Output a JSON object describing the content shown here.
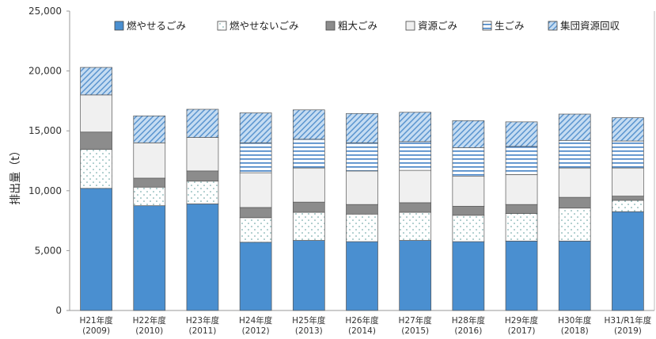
{
  "chart_data": {
    "type": "bar",
    "stacked": true,
    "ylabel": "排出量（t）",
    "ylim": [
      0,
      25000
    ],
    "yticks": [
      "0",
      "5,000",
      "10,000",
      "15,000",
      "20,000",
      "25,000"
    ],
    "ytick_values": [
      0,
      5000,
      10000,
      15000,
      20000,
      25000
    ],
    "grid": false,
    "legend_position": "top",
    "categories": [
      {
        "line1": "H21年度",
        "line2": "(2009)"
      },
      {
        "line1": "H22年度",
        "line2": "(2010)"
      },
      {
        "line1": "H23年度",
        "line2": "(2011)"
      },
      {
        "line1": "H24年度",
        "line2": "(2012)"
      },
      {
        "line1": "H25年度",
        "line2": "(2013)"
      },
      {
        "line1": "H26年度",
        "line2": "(2014)"
      },
      {
        "line1": "H27年度",
        "line2": "(2015)"
      },
      {
        "line1": "H28年度",
        "line2": "(2016)"
      },
      {
        "line1": "H29年度",
        "line2": "(2017)"
      },
      {
        "line1": "H30年度",
        "line2": "(2018)"
      },
      {
        "line1": "H31/R1年度",
        "line2": "(2019)"
      }
    ],
    "series": [
      {
        "name": "燃やせるごみ",
        "color": "#4a8fd0",
        "pattern": "solid",
        "values": [
          10200,
          8750,
          8900,
          5700,
          5850,
          5750,
          5850,
          5750,
          5800,
          5800,
          8250
        ]
      },
      {
        "name": "燃やせないごみ",
        "color": "#ffffff",
        "pattern": "dots",
        "values": [
          3250,
          1550,
          1900,
          2050,
          2350,
          2300,
          2350,
          2200,
          2300,
          2750,
          950
        ]
      },
      {
        "name": "粗大ごみ",
        "color": "#8c8c8c",
        "pattern": "solid",
        "values": [
          1450,
          750,
          850,
          850,
          850,
          800,
          800,
          750,
          750,
          900,
          350
        ]
      },
      {
        "name": "資源ごみ",
        "color": "#f0f0f0",
        "pattern": "solid",
        "values": [
          3100,
          2950,
          2800,
          2900,
          2850,
          2800,
          2700,
          2500,
          2500,
          2450,
          2350
        ]
      },
      {
        "name": "生ごみ",
        "color": "#ffffff",
        "pattern": "hlines",
        "values": [
          0,
          0,
          0,
          2500,
          2400,
          2350,
          2400,
          2400,
          2350,
          2300,
          2250
        ]
      },
      {
        "name": "集団資源回収",
        "color": "#b8d3ef",
        "pattern": "diag",
        "values": [
          2300,
          2250,
          2350,
          2500,
          2450,
          2450,
          2450,
          2250,
          2050,
          2200,
          1950
        ]
      }
    ]
  }
}
